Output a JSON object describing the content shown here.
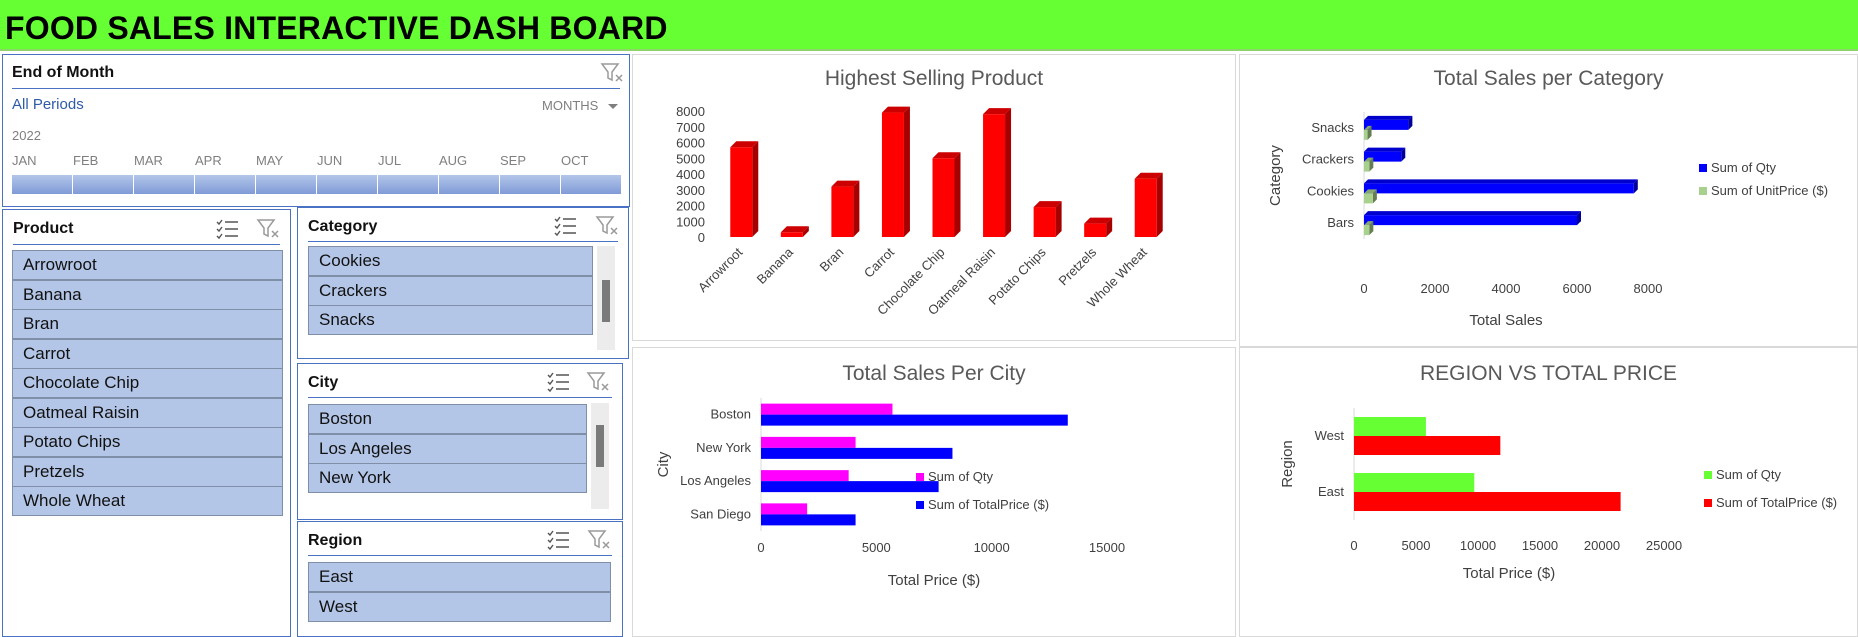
{
  "dashboard": {
    "title": "FOOD SALES INTERACTIVE DASH BOARD"
  },
  "timeline": {
    "header": "End of Month",
    "selection": "All Periods",
    "level": "MONTHS",
    "year": "2022",
    "months": [
      "JAN",
      "FEB",
      "MAR",
      "APR",
      "MAY",
      "JUN",
      "JUL",
      "AUG",
      "SEP",
      "OCT"
    ]
  },
  "slicers": {
    "product": {
      "header": "Product",
      "items": [
        "Arrowroot",
        "Banana",
        "Bran",
        "Carrot",
        "Chocolate Chip",
        "Oatmeal Raisin",
        "Potato Chips",
        "Pretzels",
        "Whole Wheat"
      ]
    },
    "category": {
      "header": "Category",
      "items": [
        "Cookies",
        "Crackers",
        "Snacks"
      ]
    },
    "city": {
      "header": "City",
      "items": [
        "Boston",
        "Los Angeles",
        "New York"
      ]
    },
    "region": {
      "header": "Region",
      "items": [
        "East",
        "West"
      ]
    }
  },
  "colors": {
    "title_bg": "#66ff33",
    "slicer_border": "#4a72c4",
    "slicer_item": "#b4c6e7",
    "red": "#ff0000",
    "blue": "#0000ff",
    "magenta": "#ff00ff",
    "green": "#66ff33",
    "light_green": "#a9d18e"
  },
  "icons": [
    "multi-select-icon",
    "clear-filter-icon",
    "dropdown-arrow-icon"
  ],
  "chart_data": [
    {
      "id": "highest_selling_product",
      "type": "bar",
      "title": "Highest Selling Product",
      "categories": [
        "Arrowroot",
        "Banana",
        "Bran",
        "Carrot",
        "Chocolate Chip",
        "Oatmeal Raisin",
        "Potato Chips",
        "Pretzels",
        "Whole Wheat"
      ],
      "values": [
        5700,
        300,
        3200,
        7900,
        5000,
        7800,
        1900,
        850,
        3700
      ],
      "ylim": [
        0,
        8000
      ],
      "yticks": [
        0,
        1000,
        2000,
        3000,
        4000,
        5000,
        6000,
        7000,
        8000
      ],
      "grid": false,
      "legend": "none",
      "color": "#ff0000"
    },
    {
      "id": "total_sales_per_category",
      "type": "bar",
      "orientation": "horizontal",
      "title": "Total Sales per Category",
      "categories": [
        "Bars",
        "Cookies",
        "Crackers",
        "Snacks"
      ],
      "series": [
        {
          "name": "Sum of Qty",
          "values": [
            6000,
            7600,
            1050,
            1250
          ],
          "color": "#0000ff"
        },
        {
          "name": "Sum of UnitPrice ($)",
          "values": [
            150,
            250,
            150,
            100
          ],
          "color": "#a9d18e"
        }
      ],
      "xlabel": "Total Sales",
      "ylabel": "Category",
      "xlim": [
        0,
        8000
      ],
      "xticks": [
        0,
        2000,
        4000,
        6000,
        8000
      ],
      "legend": "right"
    },
    {
      "id": "total_sales_per_city",
      "type": "bar",
      "orientation": "horizontal",
      "title": "Total Sales Per City",
      "categories": [
        "San Diego",
        "Los Angeles",
        "New York",
        "Boston"
      ],
      "series": [
        {
          "name": "Sum of Qty",
          "values": [
            2000,
            3800,
            4100,
            5700
          ],
          "color": "#ff00ff"
        },
        {
          "name": "Sum of TotalPrice ($)",
          "values": [
            4100,
            7700,
            8300,
            13300
          ],
          "color": "#0000ff"
        }
      ],
      "xlabel": "Total Price ($)",
      "ylabel": "City",
      "xlim": [
        0,
        15000
      ],
      "xticks": [
        0,
        5000,
        10000,
        15000
      ],
      "legend": "right"
    },
    {
      "id": "region_vs_total_price",
      "type": "bar",
      "orientation": "horizontal",
      "title": "REGION VS TOTAL PRICE",
      "categories": [
        "East",
        "West"
      ],
      "series": [
        {
          "name": "Sum of Qty",
          "values": [
            9700,
            5800
          ],
          "color": "#66ff33"
        },
        {
          "name": "Sum of TotalPrice ($)",
          "values": [
            21500,
            11800
          ],
          "color": "#ff0000"
        }
      ],
      "xlabel": "Total Price ($)",
      "ylabel": "Region",
      "xlim": [
        0,
        25000
      ],
      "xticks": [
        0,
        5000,
        10000,
        15000,
        20000,
        25000
      ],
      "legend": "right"
    }
  ]
}
